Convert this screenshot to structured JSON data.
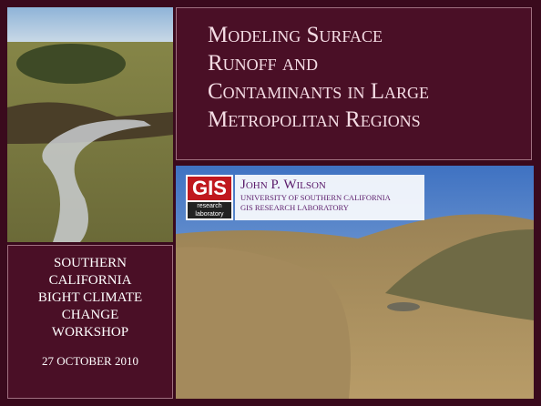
{
  "title": {
    "lines": [
      "Modeling Surface",
      "Runoff and",
      "Contaminants in Large",
      "Metropolitan Regions"
    ]
  },
  "author": {
    "name": "John P. Wilson",
    "affiliation": [
      "UNIVERSITY OF SOUTHERN CALIFORNIA",
      "GIS RESEARCH LABORATORY"
    ]
  },
  "logo": {
    "mark": "GIS",
    "lines": [
      "research",
      "laboratory"
    ]
  },
  "event": {
    "lines": [
      "SOUTHERN",
      "CALIFORNIA",
      "BIGHT CLIMATE",
      "CHANGE",
      "WORKSHOP"
    ],
    "date": "27 OCTOBER 2010"
  }
}
